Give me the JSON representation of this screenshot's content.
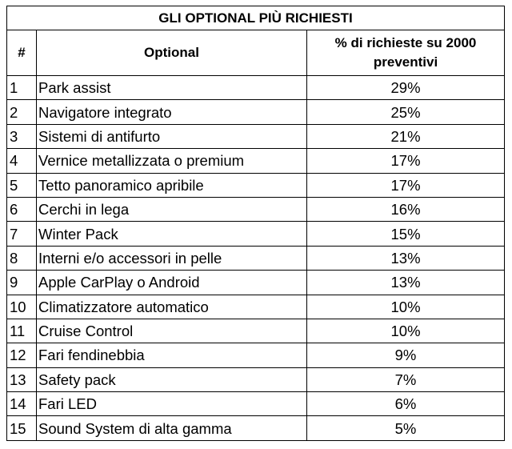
{
  "table": {
    "title": "GLI OPTIONAL PIÙ RICHIESTI",
    "headers": [
      "#",
      "Optional",
      "% di richieste su 2000 preventivi"
    ],
    "rows": [
      [
        "1",
        "Park assist",
        "29%"
      ],
      [
        "2",
        "Navigatore integrato",
        "25%"
      ],
      [
        "3",
        "Sistemi di antifurto",
        "21%"
      ],
      [
        "4",
        "Vernice metallizzata o premium",
        "17%"
      ],
      [
        "5",
        "Tetto panoramico apribile",
        "17%"
      ],
      [
        "6",
        "Cerchi in lega",
        "16%"
      ],
      [
        "7",
        "Winter Pack",
        "15%"
      ],
      [
        "8",
        "Interni e/o accessori in pelle",
        "13%"
      ],
      [
        "9",
        "Apple CarPlay o Android",
        "13%"
      ],
      [
        "10",
        "Climatizzatore automatico",
        "10%"
      ],
      [
        "11",
        "Cruise Control",
        "10%"
      ],
      [
        "12",
        "Fari fendinebbia",
        "9%"
      ],
      [
        "13",
        "Safety pack",
        "7%"
      ],
      [
        "14",
        "Fari LED",
        "6%"
      ],
      [
        "15",
        "Sound System di alta gamma",
        "5%"
      ]
    ]
  }
}
